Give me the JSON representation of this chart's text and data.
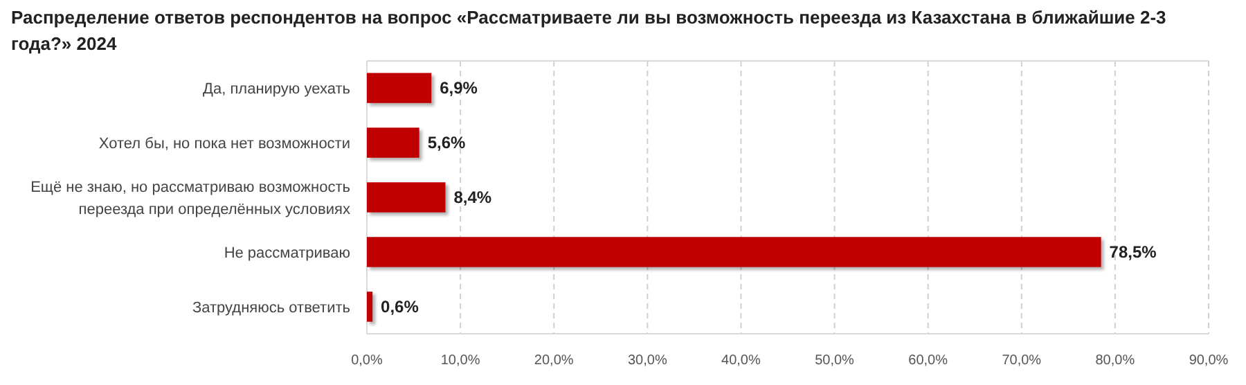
{
  "chart_data": {
    "type": "bar",
    "orientation": "horizontal",
    "title": "Распределение ответов респондентов на вопрос «Рассматриваете ли вы возможность переезда из Казахстана в ближайшие 2-3 года?» 2024",
    "categories": [
      "Да, планирую уехать",
      "Хотел бы, но пока нет возможности",
      "Ещё не знаю, но рассматриваю возможность переезда при определённых условиях",
      "Не рассматриваю",
      "Затрудняюсь ответить"
    ],
    "values": [
      6.9,
      5.6,
      8.4,
      78.5,
      0.6
    ],
    "value_labels": [
      "6,9%",
      "5,6%",
      "8,4%",
      "78,5%",
      "0,6%"
    ],
    "color": "#c00000",
    "xlim": [
      0,
      90
    ],
    "xticks": [
      {
        "value": 0,
        "label": "0,0%"
      },
      {
        "value": 10,
        "label": "10,0%"
      },
      {
        "value": 20,
        "label": "20,0%"
      },
      {
        "value": 30,
        "label": "30,0%"
      },
      {
        "value": 40,
        "label": "40,0%"
      },
      {
        "value": 50,
        "label": "50,0%"
      },
      {
        "value": 60,
        "label": "60,0%"
      },
      {
        "value": 70,
        "label": "70,0%"
      },
      {
        "value": 80,
        "label": "80,0%"
      },
      {
        "value": 90,
        "label": "90,0%"
      }
    ],
    "grid": "x"
  }
}
